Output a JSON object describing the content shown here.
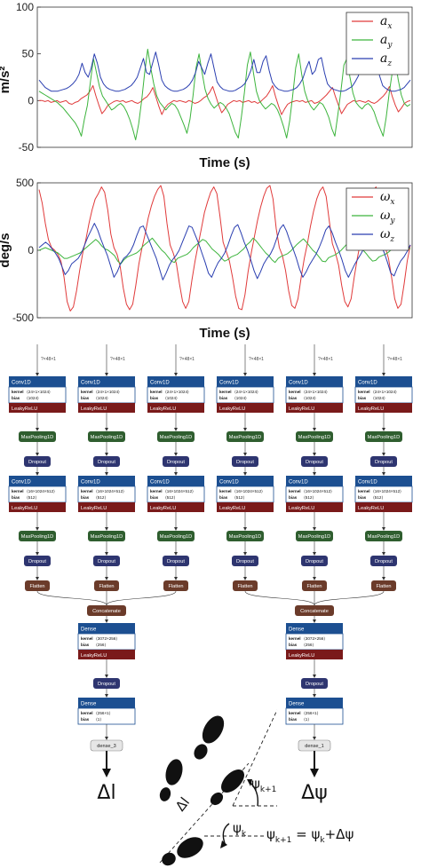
{
  "chart_data": [
    {
      "type": "line",
      "ylabel": "m/s²",
      "xlabel": "Time (s)",
      "ylim": [
        -50,
        100
      ],
      "yticks": [
        "100",
        "50",
        "0",
        "-50"
      ],
      "legend": "top-right",
      "colors": {
        "ax": "#e03a3a",
        "ay": "#3cb43c",
        "az": "#2a3eb0"
      },
      "series": [
        {
          "name": "a_x",
          "base": "a",
          "sub": "x",
          "color": "#e03a3a",
          "values": [
            0,
            0,
            -1,
            0,
            -2,
            -1,
            0,
            -2,
            -1,
            0,
            -3,
            -4,
            -2,
            -1,
            2,
            4,
            6,
            10,
            16,
            5,
            -5,
            -14,
            -10,
            -5,
            -3,
            -1,
            0,
            -1,
            0,
            -2,
            -1,
            0,
            -2,
            -3,
            -1,
            2,
            4,
            8,
            14,
            4,
            -6,
            -15,
            -8,
            -4,
            -2,
            0,
            -1,
            0,
            -1,
            -2,
            0,
            -1,
            -3,
            -2,
            0,
            3,
            5,
            9,
            15,
            5,
            -5,
            -13,
            -9,
            -4,
            -2,
            0,
            -1,
            0,
            -2,
            -1,
            0,
            -2,
            -1,
            -3,
            -1,
            2,
            5,
            10,
            16,
            4,
            -6,
            -15,
            -9,
            -4,
            -2,
            -1,
            0,
            -1,
            0,
            -2,
            -1,
            0,
            -3,
            -2,
            0,
            3,
            6,
            10,
            14,
            4,
            -5,
            -14,
            -9,
            -4,
            -2,
            0,
            -1,
            0,
            -1,
            -2,
            0,
            -2,
            -3,
            -1,
            2,
            5,
            9,
            15,
            4,
            -5,
            -12,
            -8,
            -3,
            -1,
            0
          ]
        },
        {
          "name": "a_y",
          "base": "a",
          "sub": "y",
          "color": "#3cb43c",
          "values": [
            10,
            8,
            6,
            4,
            2,
            0,
            -2,
            -5,
            -8,
            -12,
            -16,
            -20,
            -24,
            -30,
            -38,
            -20,
            -5,
            20,
            45,
            30,
            15,
            5,
            0,
            -5,
            -10,
            -8,
            -5,
            -3,
            -6,
            -12,
            -20,
            -30,
            -42,
            -25,
            0,
            30,
            55,
            35,
            18,
            5,
            -2,
            -6,
            -10,
            -6,
            -3,
            -5,
            -10,
            -18,
            -26,
            -35,
            -20,
            5,
            35,
            50,
            30,
            12,
            2,
            -4,
            -8,
            -5,
            -2,
            -4,
            -8,
            -14,
            -24,
            -34,
            -40,
            -18,
            8,
            38,
            52,
            30,
            10,
            0,
            -5,
            -9,
            -6,
            -3,
            -5,
            -10,
            -18,
            -28,
            -40,
            -22,
            5,
            35,
            50,
            28,
            10,
            0,
            -6,
            -10,
            -6,
            -2,
            -4,
            -10,
            -18,
            -30,
            -38,
            -15,
            10,
            38,
            45,
            25,
            8,
            -2,
            -6,
            -9,
            -5,
            -3,
            -6,
            -12,
            -22,
            -30,
            -38,
            -18,
            8,
            30,
            42,
            22,
            6,
            -3,
            -6,
            -4
          ]
        },
        {
          "name": "a_z",
          "base": "a",
          "sub": "z",
          "color": "#2a3eb0",
          "values": [
            22,
            18,
            14,
            12,
            10,
            10,
            10,
            11,
            12,
            13,
            15,
            18,
            22,
            28,
            40,
            30,
            25,
            35,
            50,
            40,
            25,
            18,
            14,
            12,
            11,
            10,
            10,
            11,
            12,
            14,
            16,
            20,
            25,
            35,
            45,
            30,
            28,
            40,
            52,
            38,
            22,
            16,
            13,
            11,
            10,
            10,
            11,
            12,
            14,
            17,
            22,
            30,
            42,
            35,
            28,
            40,
            50,
            35,
            20,
            15,
            12,
            11,
            10,
            10,
            11,
            13,
            15,
            18,
            24,
            32,
            44,
            30,
            30,
            42,
            48,
            32,
            20,
            15,
            12,
            11,
            10,
            10,
            11,
            12,
            14,
            18,
            24,
            34,
            42,
            28,
            32,
            44,
            46,
            30,
            18,
            14,
            12,
            11,
            10,
            10,
            11,
            13,
            15,
            20,
            26,
            36,
            40,
            30,
            34,
            44,
            40,
            26,
            16,
            13,
            11,
            10,
            10,
            11,
            12,
            14,
            18,
            22
          ]
        }
      ]
    },
    {
      "type": "line",
      "ylabel": "deg/s",
      "xlabel": "Time (s)",
      "ylim": [
        -500,
        500
      ],
      "yticks": [
        "500",
        "0",
        "-500"
      ],
      "legend": "top-right",
      "series": [
        {
          "name": "ω_x",
          "base": "ω",
          "sub": "x",
          "color": "#e03a3a",
          "values": [
            450,
            350,
            200,
            80,
            20,
            0,
            -30,
            -80,
            -200,
            -380,
            -450,
            -420,
            -300,
            -150,
            -20,
            80,
            200,
            300,
            380,
            420,
            470,
            430,
            300,
            120,
            20,
            -30,
            -120,
            -280,
            -400,
            -440,
            -400,
            -260,
            -100,
            20,
            120,
            240,
            330,
            400,
            450,
            480,
            400,
            200,
            40,
            -20,
            -100,
            -250,
            -380,
            -430,
            -380,
            -220,
            -80,
            40,
            160,
            280,
            360,
            430,
            470,
            420,
            250,
            60,
            -10,
            -80,
            -200,
            -340,
            -430,
            -440,
            -330,
            -160,
            -20,
            100,
            220,
            320,
            400,
            460,
            480,
            380,
            160,
            20,
            -40,
            -150,
            -300,
            -410,
            -430,
            -360,
            -200,
            -60,
            50,
            180,
            290,
            380,
            440,
            470,
            400,
            220,
            50,
            -20,
            -110,
            -260,
            -380,
            -420,
            -360,
            -200,
            -60,
            60,
            180,
            300,
            380,
            440,
            470,
            350,
            150,
            20,
            -60,
            -200,
            -360,
            -430,
            -400,
            -250,
            -80,
            40
          ]
        },
        {
          "name": "ω_y",
          "base": "ω",
          "sub": "y",
          "color": "#3cb43c",
          "values": [
            0,
            10,
            20,
            10,
            0,
            -10,
            -20,
            -40,
            -60,
            -60,
            -50,
            -40,
            -30,
            -20,
            0,
            20,
            40,
            60,
            80,
            60,
            30,
            10,
            0,
            -20,
            -40,
            -80,
            -100,
            -70,
            -50,
            -40,
            -30,
            -20,
            0,
            30,
            50,
            70,
            90,
            60,
            30,
            0,
            -20,
            -50,
            -80,
            -90,
            -60,
            -50,
            -40,
            -30,
            -10,
            20,
            40,
            60,
            80,
            70,
            40,
            10,
            -10,
            -30,
            -60,
            -80,
            -70,
            -50,
            -40,
            -30,
            -10,
            10,
            40,
            60,
            90,
            70,
            40,
            10,
            -20,
            -40,
            -70,
            -90,
            -60,
            -45,
            -35,
            -25,
            -5,
            20,
            45,
            65,
            85,
            60,
            30,
            0,
            -20,
            -50,
            -80,
            -85,
            -55,
            -45,
            -35,
            -20,
            0,
            25,
            50,
            70,
            80,
            55,
            25,
            0,
            -25,
            -55,
            -80,
            -75,
            -50,
            -40,
            -30,
            -15,
            5,
            30,
            55,
            70,
            60,
            30,
            10
          ]
        },
        {
          "name": "ω_z",
          "base": "ω",
          "sub": "z",
          "color": "#2a3eb0",
          "values": [
            20,
            40,
            60,
            40,
            10,
            -20,
            -60,
            -120,
            -180,
            -150,
            -100,
            -80,
            -60,
            -20,
            40,
            100,
            150,
            200,
            150,
            80,
            20,
            -40,
            -120,
            -200,
            -160,
            -100,
            -60,
            -40,
            -10,
            40,
            110,
            170,
            180,
            120,
            60,
            0,
            -60,
            -140,
            -220,
            -170,
            -110,
            -70,
            -40,
            0,
            60,
            120,
            180,
            170,
            110,
            50,
            -20,
            -90,
            -170,
            -200,
            -140,
            -90,
            -60,
            -20,
            40,
            110,
            170,
            190,
            130,
            60,
            0,
            -70,
            -150,
            -210,
            -160,
            -100,
            -60,
            -30,
            20,
            90,
            160,
            190,
            140,
            70,
            10,
            -60,
            -140,
            -200,
            -160,
            -110,
            -70,
            -30,
            20,
            80,
            150,
            180,
            130,
            60,
            0,
            -70,
            -150,
            -200,
            -150,
            -100,
            -60,
            -20,
            30,
            100,
            160,
            170,
            110,
            40,
            -20,
            -90,
            -170,
            -190,
            -130,
            -80,
            -50,
            -10,
            40
          ]
        }
      ]
    }
  ],
  "network": {
    "input_shape": "?×48×1",
    "conv1": {
      "title": "Conv1D",
      "kernel_label": "kernel",
      "kernel_value": "⟨24×1×1024⟩",
      "bias_label": "bias",
      "bias_value": "⟨1024⟩"
    },
    "conv2": {
      "title": "Conv1D",
      "kernel_label": "kernel",
      "kernel_value": "⟨16×1024×512⟩",
      "bias_label": "bias",
      "bias_value": "⟨512⟩"
    },
    "leaky": "LeakyReLU",
    "pool": "MaxPooling1D",
    "dropout": "Dropout",
    "flatten": "Flatten",
    "concat": "Concatenate",
    "dense1": {
      "title": "Dense",
      "kernel_label": "kernel",
      "kernel_value": "⟨3072×256⟩",
      "bias_label": "bias",
      "bias_value": "⟨256⟩"
    },
    "dense2": {
      "title": "Dense",
      "kernel_label": "kernel",
      "kernel_value": "⟨256×1⟩",
      "bias_label": "bias",
      "bias_value": "⟨1⟩"
    },
    "out_left": "dense_3",
    "out_right": "dense_1",
    "result_left": "Δl",
    "result_right": "Δψ"
  },
  "geometry_figure": {
    "psi_k1": "ψ",
    "psi_k1_sub": "k+1",
    "psi_k": "ψ",
    "psi_k_sub": "k",
    "delta_l": "Δl",
    "equation": "ψk+1 = ψk+Δψ",
    "eq_parts": [
      "ψ",
      "k+1",
      " = ψ",
      "k",
      "+Δψ"
    ]
  }
}
